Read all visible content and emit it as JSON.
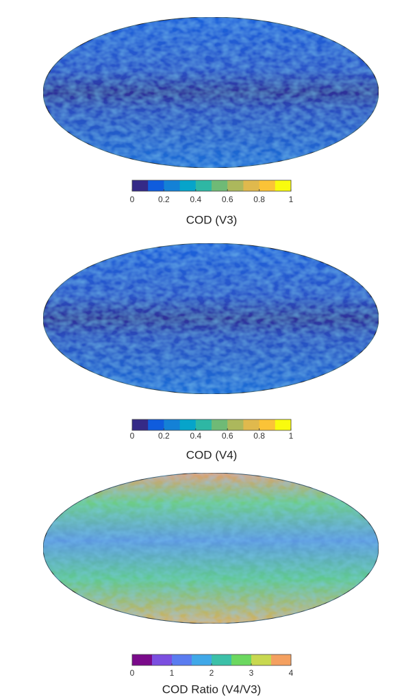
{
  "panels": [
    {
      "title": "COD (V3)",
      "colorbar": {
        "lim": [
          0,
          1
        ],
        "ticks": [
          0,
          0.2,
          0.4,
          0.6,
          0.8,
          1
        ],
        "colors": [
          "#352a87",
          "#0f5cdd",
          "#1481d6",
          "#06a4ca",
          "#2eb7a4",
          "#6fba76",
          "#acb85c",
          "#e0b94d",
          "#fbc337",
          "#f9fb0e"
        ]
      }
    },
    {
      "title": "COD (V4)",
      "colorbar": {
        "lim": [
          0,
          1
        ],
        "ticks": [
          0,
          0.2,
          0.4,
          0.6,
          0.8,
          1
        ],
        "colors": [
          "#352a87",
          "#0f5cdd",
          "#1481d6",
          "#06a4ca",
          "#2eb7a4",
          "#6fba76",
          "#acb85c",
          "#e0b94d",
          "#fbc337",
          "#f9fb0e"
        ]
      }
    },
    {
      "title": "COD Ratio (V4/V3)",
      "colorbar": {
        "lim": [
          0,
          4
        ],
        "ticks": [
          0,
          1,
          2,
          3,
          4
        ],
        "colors": [
          "#7a0a8a",
          "#7b4fe0",
          "#5a7cf0",
          "#40a8e8",
          "#3cc0a8",
          "#6cd860",
          "#c8d850",
          "#f4a060"
        ]
      }
    }
  ]
}
